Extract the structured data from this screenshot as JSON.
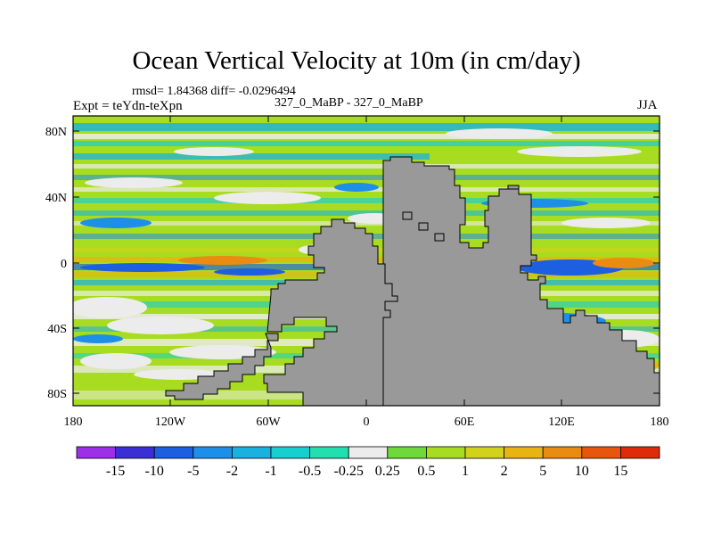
{
  "title": "Ocean Vertical Velocity at 10m (in cm/day)",
  "stats_line": "rmsd= 1.84368 diff= -0.0296494",
  "left_label": "Expt = teYdn-teXpn",
  "center_label": "327_0_MaBP - 327_0_MaBP",
  "right_label": "JJA",
  "lat_labels": [
    "80N",
    "40N",
    "0",
    "40S",
    "80S"
  ],
  "lon_labels": [
    "180",
    "120W",
    "60W",
    "0",
    "60E",
    "120E",
    "180"
  ],
  "colorbar": {
    "labels": [
      "-15",
      "-10",
      "-5",
      "-2",
      "-1",
      "-0.5",
      "-0.25",
      "0.25",
      "0.5",
      "1",
      "2",
      "5",
      "10",
      "15"
    ],
    "colors": [
      "#9b30e8",
      "#3a2fd6",
      "#1c5fe0",
      "#1e8fe8",
      "#19b2e0",
      "#16cfd0",
      "#22dfb0",
      "#ececec",
      "#6fd83a",
      "#a8dc20",
      "#d2d21a",
      "#e8b412",
      "#ea8c12",
      "#e8560e",
      "#e02a0c"
    ]
  },
  "colors": {
    "land": "#999999",
    "ocean_base": "#a8dc20",
    "coast": "#000000"
  }
}
